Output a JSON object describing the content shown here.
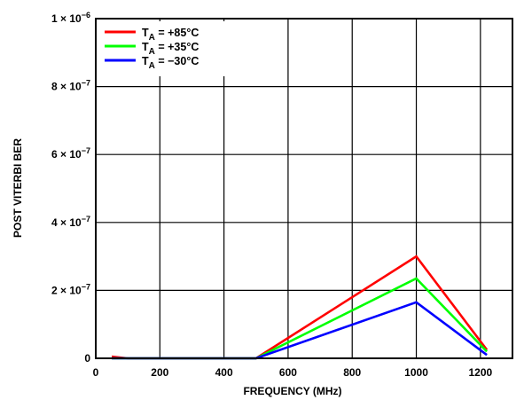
{
  "chart_data": {
    "type": "line",
    "title": "",
    "xlabel": "FREQUENCY (MHz)",
    "ylabel": "POST VITERBI BER",
    "xlim": [
      0,
      1300
    ],
    "ylim": [
      0,
      1e-06
    ],
    "x_ticks": [
      {
        "value": 0,
        "label": "0"
      },
      {
        "value": 200,
        "label": "200"
      },
      {
        "value": 400,
        "label": "400"
      },
      {
        "value": 600,
        "label": "600"
      },
      {
        "value": 800,
        "label": "800"
      },
      {
        "value": 1000,
        "label": "1000"
      },
      {
        "value": 1200,
        "label": "1200"
      }
    ],
    "y_ticks": [
      {
        "value": 0,
        "mantissa": "0",
        "exponent": ""
      },
      {
        "value": 2e-07,
        "mantissa": "2 × 10",
        "exponent": "−7"
      },
      {
        "value": 4e-07,
        "mantissa": "4 × 10",
        "exponent": "−7"
      },
      {
        "value": 6e-07,
        "mantissa": "6 × 10",
        "exponent": "−7"
      },
      {
        "value": 8e-07,
        "mantissa": "8 × 10",
        "exponent": "−7"
      },
      {
        "value": 1e-06,
        "mantissa": "1 × 10",
        "exponent": "−6"
      }
    ],
    "grid": true,
    "legend_position": "top-left",
    "series": [
      {
        "name_prefix": "T",
        "name_subscript": "A",
        "name_suffix": " = +85°C",
        "color": "#ff0000",
        "x": [
          50,
          100,
          500,
          1000,
          1220
        ],
        "y": [
          5e-09,
          0,
          0,
          3e-07,
          2.5e-08
        ]
      },
      {
        "name_prefix": "T",
        "name_subscript": "A",
        "name_suffix": " = +35°C",
        "color": "#00ff00",
        "x": [
          50,
          100,
          500,
          1000,
          1220
        ],
        "y": [
          0,
          0,
          0,
          2.35e-07,
          2e-08
        ]
      },
      {
        "name_prefix": "T",
        "name_subscript": "A",
        "name_suffix": " = −30°C",
        "color": "#0000ff",
        "x": [
          50,
          100,
          500,
          1000,
          1220
        ],
        "y": [
          0,
          0,
          0,
          1.65e-07,
          1e-08
        ]
      }
    ]
  }
}
